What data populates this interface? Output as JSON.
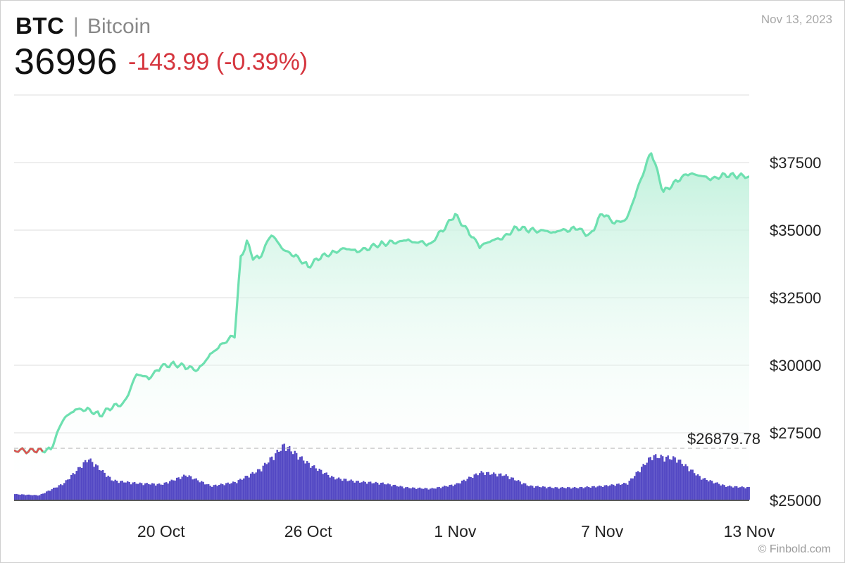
{
  "header": {
    "ticker": "BTC",
    "separator": "|",
    "name": "Bitcoin",
    "price": "36996",
    "change": "-143.99 (-0.39%)",
    "date": "Nov 13, 2023"
  },
  "footer": {
    "source": "© Finbold.com"
  },
  "colors": {
    "line": "#6ee0b0",
    "area_top": "#bdf0da",
    "volume": "#5449c4",
    "reference_line": "#c8c8c8",
    "grid": "#dddddd",
    "negative": "#d5353e",
    "start_segment": "#e05050"
  },
  "chart_data": {
    "type": "area",
    "title": "BTC | Bitcoin",
    "x_tick_labels": [
      "20 Oct",
      "26 Oct",
      "1 Nov",
      "7 Nov",
      "13 Nov"
    ],
    "y_tick_labels": [
      "$37500",
      "$35000",
      "$32500",
      "$30000",
      "$27500",
      "$25000"
    ],
    "y_ticks": [
      37500,
      35000,
      32500,
      30000,
      27500,
      25000
    ],
    "ylim": [
      24700,
      40100
    ],
    "reference_value": 26879.78,
    "reference_label": "$26879.78",
    "grid": true,
    "series": [
      {
        "type": "line",
        "x": [
          "2023-10-14",
          "2023-10-15",
          "2023-10-15 12:00",
          "2023-10-16",
          "2023-10-16 12:00",
          "2023-10-17",
          "2023-10-17 12:00",
          "2023-10-18",
          "2023-10-18 12:00",
          "2023-10-19",
          "2023-10-19 12:00",
          "2023-10-20",
          "2023-10-20 12:00",
          "2023-10-21",
          "2023-10-21 12:00",
          "2023-10-22",
          "2023-10-22 12:00",
          "2023-10-23",
          "2023-10-23 06:00",
          "2023-10-23 12:00",
          "2023-10-23 18:00",
          "2023-10-24",
          "2023-10-24 12:00",
          "2023-10-25",
          "2023-10-25 12:00",
          "2023-10-26",
          "2023-10-26 12:00",
          "2023-10-27",
          "2023-10-27 12:00",
          "2023-10-28",
          "2023-10-29",
          "2023-10-30",
          "2023-10-31",
          "2023-11-01",
          "2023-11-01 12:00",
          "2023-11-02",
          "2023-11-02 12:00",
          "2023-11-03",
          "2023-11-03 12:00",
          "2023-11-04",
          "2023-11-05",
          "2023-11-06",
          "2023-11-06 12:00",
          "2023-11-07",
          "2023-11-07 12:00",
          "2023-11-08",
          "2023-11-08 12:00",
          "2023-11-09",
          "2023-11-09 12:00",
          "2023-11-10",
          "2023-11-10 12:00",
          "2023-11-11",
          "2023-11-11 12:00",
          "2023-11-12",
          "2023-11-12 12:00",
          "2023-11-13"
        ],
        "values": [
          26850,
          26830,
          26900,
          28000,
          28350,
          28380,
          28150,
          28450,
          28600,
          29700,
          29500,
          29950,
          30050,
          29950,
          29800,
          30400,
          30800,
          31100,
          34000,
          34550,
          34000,
          33950,
          34850,
          34250,
          34050,
          33650,
          34000,
          34150,
          34350,
          34200,
          34500,
          34600,
          34500,
          35550,
          35000,
          34400,
          34600,
          34750,
          35100,
          35000,
          34950,
          35050,
          34800,
          35650,
          35250,
          35400,
          36700,
          37900,
          36400,
          36800,
          37100,
          37000,
          36900,
          37050,
          37000,
          36996
        ]
      },
      {
        "name": "Volume",
        "type": "bar",
        "x": [
          "2023-10-14",
          "2023-10-15",
          "2023-10-16",
          "2023-10-17",
          "2023-10-18",
          "2023-10-19",
          "2023-10-20",
          "2023-10-21",
          "2023-10-22",
          "2023-10-23",
          "2023-10-24",
          "2023-10-25",
          "2023-10-26",
          "2023-10-27",
          "2023-10-28",
          "2023-10-29",
          "2023-10-30",
          "2023-10-31",
          "2023-11-01",
          "2023-11-02",
          "2023-11-03",
          "2023-11-04",
          "2023-11-05",
          "2023-11-06",
          "2023-11-07",
          "2023-11-08",
          "2023-11-09",
          "2023-11-10",
          "2023-11-11",
          "2023-11-12",
          "2023-11-13"
        ],
        "values": [
          0.1,
          0.08,
          0.3,
          0.75,
          0.35,
          0.3,
          0.28,
          0.45,
          0.25,
          0.32,
          0.55,
          1.0,
          0.65,
          0.4,
          0.33,
          0.3,
          0.22,
          0.2,
          0.28,
          0.5,
          0.45,
          0.25,
          0.22,
          0.22,
          0.25,
          0.3,
          0.8,
          0.75,
          0.4,
          0.25,
          0.22
        ]
      }
    ]
  }
}
